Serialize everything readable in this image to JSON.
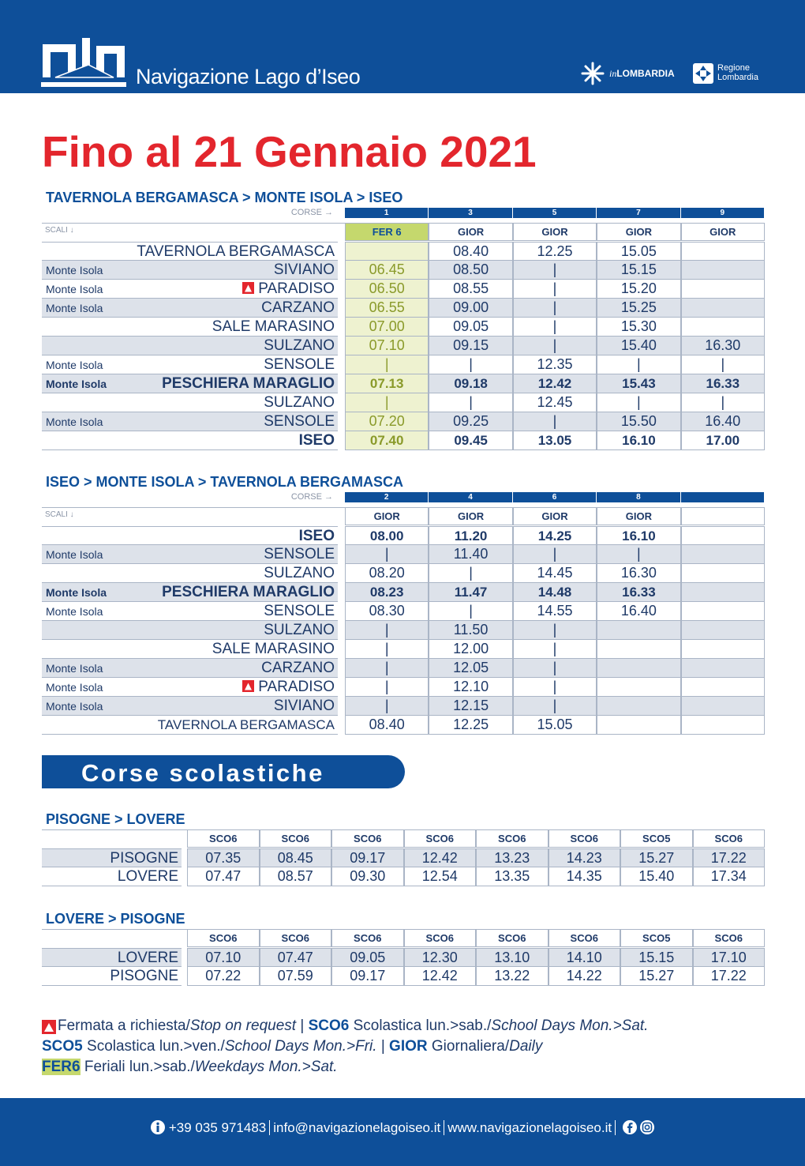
{
  "header": {
    "brand": "Navigazione Lago d’Iseo",
    "partner1_in": "in",
    "partner1": "LOMBARDIA",
    "partner2_line1": "Regione",
    "partner2_line2": "Lombardia"
  },
  "title": "Fino al 21 Gennaio 2021",
  "tables": [
    {
      "title": "TAVERNOLA BERGAMASCA > MONTE ISOLA > ISEO",
      "corse_label": "CORSE →",
      "scali_label": "SCALI ↓",
      "corse": [
        "1",
        "3",
        "5",
        "7",
        "9"
      ],
      "types": [
        "FER 6",
        "GIOR",
        "GIOR",
        "GIOR",
        "GIOR"
      ],
      "highlight_column": 0,
      "rows": [
        {
          "stop": "TAVERNOLA BERGAMASCA",
          "times": [
            null,
            "08.40",
            "12.25",
            "15.05",
            null
          ]
        },
        {
          "area": "Monte Isola",
          "stop": "SIVIANO",
          "times": [
            "06.45",
            "08.50",
            "|",
            "15.15",
            null
          ]
        },
        {
          "area": "Monte Isola",
          "stop": "PARADISO",
          "request": true,
          "times": [
            "06.50",
            "08.55",
            "|",
            "15.20",
            null
          ]
        },
        {
          "area": "Monte Isola",
          "stop": "CARZANO",
          "times": [
            "06.55",
            "09.00",
            "|",
            "15.25",
            null
          ]
        },
        {
          "stop": "SALE MARASINO",
          "times": [
            "07.00",
            "09.05",
            "|",
            "15.30",
            null
          ]
        },
        {
          "stop": "SULZANO",
          "times": [
            "07.10",
            "09.15",
            "|",
            "15.40",
            "16.30"
          ]
        },
        {
          "area": "Monte Isola",
          "stop": "SENSOLE",
          "times": [
            "|",
            "|",
            "12.35",
            "|",
            "|"
          ]
        },
        {
          "area": "Monte Isola",
          "stop": "PESCHIERA MARAGLIO",
          "bold": true,
          "times": [
            "07.13",
            "09.18",
            "12.42",
            "15.43",
            "16.33"
          ]
        },
        {
          "stop": "SULZANO",
          "times": [
            "|",
            "|",
            "12.45",
            "|",
            "|"
          ]
        },
        {
          "area": "Monte Isola",
          "stop": "SENSOLE",
          "times": [
            "07.20",
            "09.25",
            "|",
            "15.50",
            "16.40"
          ]
        },
        {
          "stop": "ISEO",
          "bold": true,
          "times": [
            "07.40",
            "09.45",
            "13.05",
            "16.10",
            "17.00"
          ]
        }
      ]
    },
    {
      "title": "ISEO > MONTE ISOLA > TAVERNOLA BERGAMASCA",
      "corse_label": "CORSE →",
      "scali_label": "SCALI ↓",
      "corse": [
        "2",
        "4",
        "6",
        "8"
      ],
      "types": [
        "GIOR",
        "GIOR",
        "GIOR",
        "GIOR"
      ],
      "rows": [
        {
          "stop": "ISEO",
          "bold": true,
          "times": [
            "08.00",
            "11.20",
            "14.25",
            "16.10"
          ]
        },
        {
          "area": "Monte Isola",
          "stop": "SENSOLE",
          "times": [
            "|",
            "11.40",
            "|",
            "|"
          ]
        },
        {
          "stop": "SULZANO",
          "times": [
            "08.20",
            "|",
            "14.45",
            "16.30"
          ]
        },
        {
          "area": "Monte Isola",
          "stop": "PESCHIERA MARAGLIO",
          "bold": true,
          "times": [
            "08.23",
            "11.47",
            "14.48",
            "16.33"
          ]
        },
        {
          "area": "Monte Isola",
          "stop": "SENSOLE",
          "times": [
            "08.30",
            "|",
            "14.55",
            "16.40"
          ]
        },
        {
          "stop": "SULZANO",
          "times": [
            "|",
            "11.50",
            "|",
            null
          ]
        },
        {
          "stop": "SALE MARASINO",
          "times": [
            "|",
            "12.00",
            "|",
            null
          ]
        },
        {
          "area": "Monte Isola",
          "stop": "CARZANO",
          "times": [
            "|",
            "12.05",
            "|",
            null
          ]
        },
        {
          "area": "Monte Isola",
          "stop": "PARADISO",
          "request": true,
          "times": [
            "|",
            "12.10",
            "|",
            null
          ]
        },
        {
          "area": "Monte Isola",
          "stop": "SIVIANO",
          "times": [
            "|",
            "12.15",
            "|",
            null
          ]
        },
        {
          "stop": "TAVERNOLA BERGAMASCA",
          "small": true,
          "times": [
            "08.40",
            "12.25",
            "15.05",
            null
          ]
        }
      ]
    },
    {
      "title": "PISOGNE > LOVERE",
      "types": [
        "SCO6",
        "SCO6",
        "SCO6",
        "SCO6",
        "SCO6",
        "SCO6",
        "SCO5",
        "SCO6"
      ],
      "rows": [
        {
          "stop": "PISOGNE",
          "times": [
            "07.35",
            "08.45",
            "09.17",
            "12.42",
            "13.23",
            "14.23",
            "15.27",
            "17.22"
          ]
        },
        {
          "stop": "LOVERE",
          "times": [
            "07.47",
            "08.57",
            "09.30",
            "12.54",
            "13.35",
            "14.35",
            "15.40",
            "17.34"
          ]
        }
      ]
    },
    {
      "title": "LOVERE > PISOGNE",
      "types": [
        "SCO6",
        "SCO6",
        "SCO6",
        "SCO6",
        "SCO6",
        "SCO6",
        "SCO5",
        "SCO6"
      ],
      "rows": [
        {
          "stop": "LOVERE",
          "times": [
            "07.10",
            "07.47",
            "09.05",
            "12.30",
            "13.10",
            "14.10",
            "15.15",
            "17.10"
          ]
        },
        {
          "stop": "PISOGNE",
          "times": [
            "07.22",
            "07.59",
            "09.17",
            "12.42",
            "13.22",
            "14.22",
            "15.27",
            "17.22"
          ]
        }
      ]
    }
  ],
  "section_title": "Corse scolastiche",
  "legend": [
    [
      {
        "text": "Fermata a richiesta/",
        "style": "n"
      },
      {
        "text": "Stop on request",
        "style": "i"
      },
      {
        "text": " | ",
        "style": "n"
      },
      {
        "text": "SCO6",
        "style": "b"
      },
      {
        "text": " Scolastica lun.>sab./",
        "style": "n"
      },
      {
        "text": "School Days Mon.>Sat.",
        "style": "i"
      }
    ],
    [
      {
        "text": "SCO5",
        "style": "b"
      },
      {
        "text": " Scolastica lun.>ven./",
        "style": "n"
      },
      {
        "text": "School Days Mon.>Fri.",
        "style": "i"
      },
      {
        "text": " | ",
        "style": "n"
      },
      {
        "text": "GIOR",
        "style": "b"
      },
      {
        "text": " Giornaliera/",
        "style": "n"
      },
      {
        "text": "Daily",
        "style": "i"
      }
    ],
    [
      {
        "text": "FER6",
        "style": "hl"
      },
      {
        "text": " Feriali lun.>sab./",
        "style": "n"
      },
      {
        "text": "Weekdays Mon.>Sat.",
        "style": "i"
      }
    ]
  ],
  "footer": {
    "phone": "+39 035 971483",
    "email": "info@navigazionelagoiseo.it",
    "web": "www.navigazionelagoiseo.it"
  }
}
